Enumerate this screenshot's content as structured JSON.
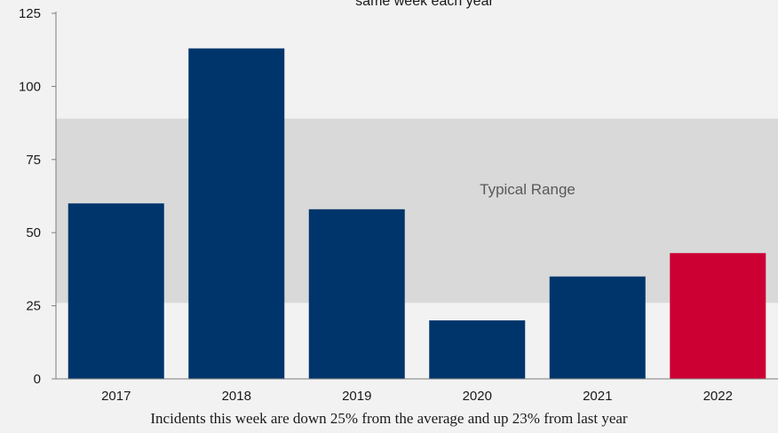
{
  "chart_data": {
    "type": "bar",
    "title": "same week each year",
    "categories": [
      "2017",
      "2018",
      "2019",
      "2020",
      "2021",
      "2022"
    ],
    "values": [
      60,
      113,
      58,
      20,
      35,
      43
    ],
    "ylim": [
      0,
      125
    ],
    "yticks": [
      0,
      25,
      50,
      75,
      100,
      125
    ],
    "xlabel": "",
    "ylabel": "",
    "grid": false,
    "band": {
      "label": "Typical Range",
      "low": 26,
      "high": 89
    },
    "colors": {
      "bar": "#00356b",
      "highlight": "#cc0033",
      "band": "#d9d9d9",
      "background": "#f2f2f2"
    },
    "highlight_index": 5
  },
  "caption": "Incidents this week are down 25% from the average and up 23% from last year"
}
